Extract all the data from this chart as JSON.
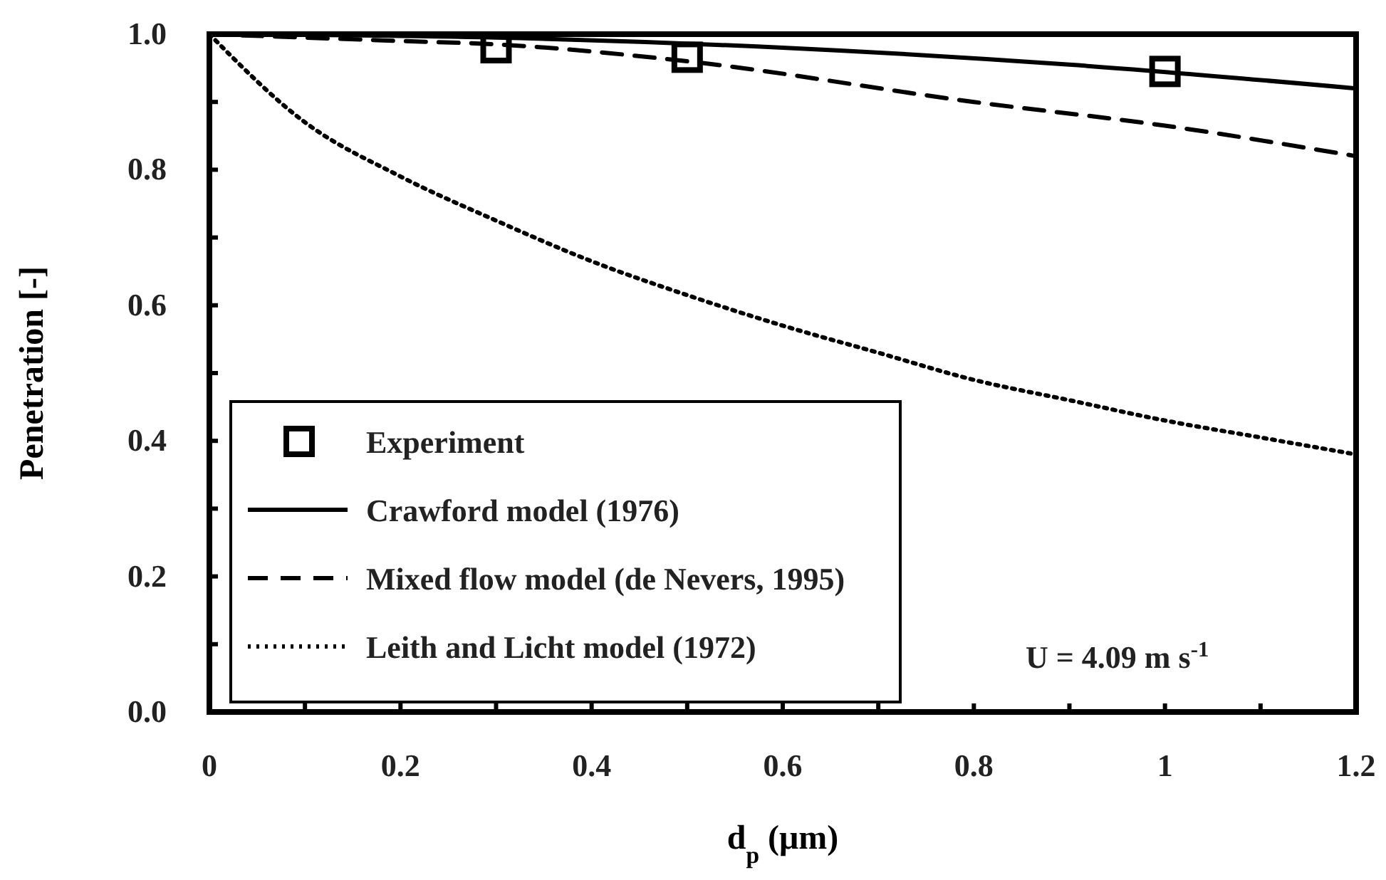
{
  "chart_data": {
    "type": "line",
    "xlabel": "d$_{p}$ (μm)",
    "ylabel": "Penetration [-]",
    "xlim": [
      0,
      1.2
    ],
    "ylim": [
      0,
      1.0
    ],
    "xticks": [
      0,
      {
        "value": 0.1,
        "label": null
      },
      0.2,
      {
        "value": 0.3,
        "label": null
      },
      0.4,
      {
        "value": 0.5,
        "label": null
      },
      0.6,
      {
        "value": 0.7,
        "label": null
      },
      0.8,
      {
        "value": 0.9,
        "label": null
      },
      1,
      {
        "value": 1.1,
        "label": null
      },
      1.2
    ],
    "yticks": [
      {
        "value": 0,
        "label": "0.0"
      },
      {
        "value": 0.1,
        "label": null
      },
      0.2,
      {
        "value": 0.3,
        "label": null
      },
      0.4,
      {
        "value": 0.5,
        "label": null
      },
      0.6,
      {
        "value": 0.7,
        "label": null
      },
      0.8,
      {
        "value": 0.9,
        "label": null
      },
      {
        "value": 1,
        "label": "1.0"
      }
    ],
    "grid": false,
    "legend": "bottom left",
    "annotations": [
      "U = 4.09 m s$^{-1}$"
    ],
    "series": [
      {
        "name": "Experiment",
        "type": "scatter",
        "marker": "square",
        "color": "#000000",
        "x": [
          0.3,
          0.5,
          1.0
        ],
        "values": [
          0.98,
          0.966,
          0.945
        ]
      },
      {
        "name": "Crawford model (1976)",
        "line_style": "solid",
        "color": "#000000",
        "x": [
          0,
          0.3,
          0.6,
          0.9,
          1.2
        ],
        "values": [
          1.0,
          0.995,
          0.98,
          0.955,
          0.92
        ]
      },
      {
        "name": "Mixed flow model (de Nevers, 1995)",
        "line_style": "dashed",
        "color": "#000000",
        "x": [
          0,
          0.2,
          0.3,
          0.5,
          0.8,
          1.0,
          1.2
        ],
        "values": [
          1.0,
          0.99,
          0.985,
          0.96,
          0.9,
          0.865,
          0.82
        ]
      },
      {
        "name": "Leith and Licht model (1972)",
        "line_style": "dotted",
        "color": "#000000",
        "x": [
          0,
          0.1,
          0.2,
          0.3,
          0.4,
          0.5,
          0.6,
          0.7,
          0.8,
          0.9,
          1.0,
          1.1,
          1.2
        ],
        "values": [
          1.0,
          0.87,
          0.79,
          0.725,
          0.665,
          0.615,
          0.57,
          0.53,
          0.49,
          0.46,
          0.43,
          0.405,
          0.38
        ]
      }
    ]
  }
}
